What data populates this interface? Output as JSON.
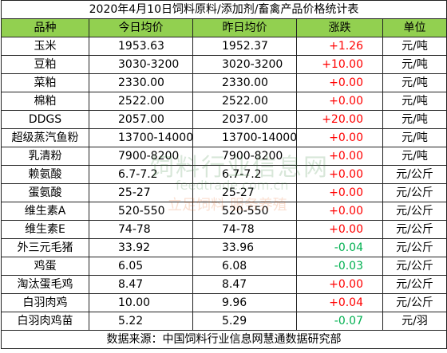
{
  "title": "2020年4月10日饲料原料/添加剂/畜禽产品价格统计表",
  "headers": [
    "品种",
    "今日均价",
    "昨日均价",
    "涨跌",
    "单位"
  ],
  "rows": [
    {
      "name": "玉米",
      "today": "1953.63",
      "yesterday": "1952.37",
      "change": "+1.26",
      "dir": "up",
      "unit": "元/吨"
    },
    {
      "name": "豆粕",
      "today": "3030-3200",
      "yesterday": "3020-3200",
      "change": "+10.00",
      "dir": "up",
      "unit": "元/吨"
    },
    {
      "name": "菜粕",
      "today": "2330.00",
      "yesterday": "2330.00",
      "change": "+0.00",
      "dir": "up",
      "unit": "元/吨"
    },
    {
      "name": "棉粕",
      "today": "2522.00",
      "yesterday": "2522.00",
      "change": "+0.00",
      "dir": "up",
      "unit": "元/吨"
    },
    {
      "name": "DDGS",
      "today": "2057.00",
      "yesterday": "2037.00",
      "change": "+20.00",
      "dir": "up",
      "unit": "元/吨"
    },
    {
      "name": "超级蒸汽鱼粉",
      "today": "13700-14000",
      "yesterday": "13700-14000",
      "change": "+0.00",
      "dir": "up",
      "unit": "元/吨"
    },
    {
      "name": "乳清粉",
      "today": "7900-8200",
      "yesterday": "7900-8200",
      "change": "+0.00",
      "dir": "up",
      "unit": "元/吨"
    },
    {
      "name": "赖氨酸",
      "today": "6.7-7.2",
      "yesterday": "6.7-7.2",
      "change": "+0.00",
      "dir": "up",
      "unit": "元/公斤"
    },
    {
      "name": "蛋氨酸",
      "today": "25-27",
      "yesterday": "25-27",
      "change": "+0.00",
      "dir": "up",
      "unit": "元/公斤"
    },
    {
      "name": "维生素A",
      "today": "520-550",
      "yesterday": "520-550",
      "change": "+0.00",
      "dir": "up",
      "unit": "元/公斤"
    },
    {
      "name": "维生素E",
      "today": "74-78",
      "yesterday": "74-78",
      "change": "+0.00",
      "dir": "up",
      "unit": "元/公斤"
    },
    {
      "name": "外三元毛猪",
      "today": "33.92",
      "yesterday": "33.96",
      "change": "-0.04",
      "dir": "down",
      "unit": "元/公斤"
    },
    {
      "name": "鸡蛋",
      "today": "6.05",
      "yesterday": "6.08",
      "change": "-0.03",
      "dir": "down",
      "unit": "元/公斤"
    },
    {
      "name": "淘汰蛋毛鸡",
      "today": "8.47",
      "yesterday": "8.47",
      "change": "+0.00",
      "dir": "up",
      "unit": "元/公斤"
    },
    {
      "name": "白羽肉鸡",
      "today": "10.00",
      "yesterday": "9.96",
      "change": "+0.04",
      "dir": "up",
      "unit": "元/公斤"
    },
    {
      "name": "白羽肉鸡苗",
      "today": "5.22",
      "yesterday": "5.29",
      "change": "-0.07",
      "dir": "down",
      "unit": "元/羽"
    }
  ],
  "footer": "数据来源：中国饲料行业信息网慧通数据研究部",
  "watermark": {
    "name": "饲料行业信息网",
    "url": "feedtrade.com.cn",
    "slogan": "立足饲料 服务养殖"
  },
  "colors": {
    "header_bg": "#92d050",
    "up": "#ff0000",
    "down": "#00b050",
    "border": "#222222"
  }
}
